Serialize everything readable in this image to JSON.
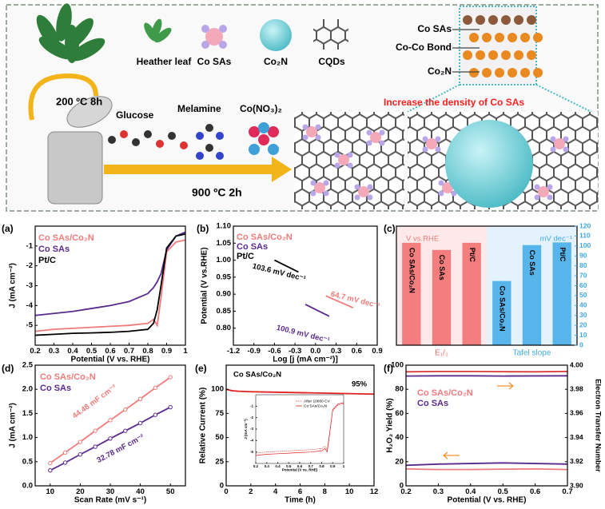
{
  "scheme": {
    "legend": [
      "Heather leaf",
      "Co SAs",
      "Co₂N",
      "CQDs"
    ],
    "structure_labels": [
      "Co SAs",
      "Co-Co Bond",
      "Co₂N"
    ],
    "conditions": [
      "200 ºC 8h",
      "900 ºC 2h"
    ],
    "precursors": [
      "Glucose",
      "Melamine",
      "Co(NO₃)₂"
    ],
    "caption": "Increase the density of Co SAs"
  },
  "chart_data": [
    {
      "type": "line",
      "label": "(a)",
      "xlabel": "Potential (V vs. RHE)",
      "ylabel": "J (mA cm⁻²)",
      "x": [
        0.2,
        0.3,
        0.4,
        0.5,
        0.6,
        0.7,
        0.8,
        0.83,
        0.85,
        0.87,
        0.9,
        0.95,
        1.0
      ],
      "xlim": [
        0.2,
        1.0
      ],
      "xticks": [
        0.2,
        0.3,
        0.4,
        0.5,
        0.6,
        0.7,
        0.8,
        0.9,
        1.0
      ],
      "ylim": [
        -6,
        0
      ],
      "yticks": [
        -5,
        -4,
        -3,
        -2,
        -1
      ],
      "series": [
        {
          "name": "Co SAs/Co₂N",
          "color": "#f07b7b",
          "values": [
            -5.3,
            -5.2,
            -5.15,
            -5.1,
            -5.05,
            -5.0,
            -4.9,
            -4.7,
            -5.0,
            -3.6,
            -1.3,
            -0.8,
            -0.7
          ]
        },
        {
          "name": "Co SAs",
          "color": "#5a2a8c",
          "values": [
            -4.5,
            -4.4,
            -4.3,
            -4.15,
            -4.0,
            -3.8,
            -3.4,
            -3.1,
            -2.8,
            -2.4,
            -1.2,
            -0.5,
            -0.3
          ]
        },
        {
          "name": "Pt/C",
          "color": "#000000",
          "values": [
            -5.5,
            -5.45,
            -5.4,
            -5.38,
            -5.35,
            -5.3,
            -5.2,
            -4.9,
            -4.2,
            -3.0,
            -1.1,
            -0.5,
            -0.4
          ]
        }
      ]
    },
    {
      "type": "line",
      "label": "(b)",
      "xlabel": "Log [j (mA cm⁻²)]",
      "ylabel": "Potential (V vs.RHE)",
      "xlim": [
        -1.2,
        0.9
      ],
      "xticks": [
        -1.2,
        -0.9,
        -0.6,
        -0.3,
        {
          "value": 0,
          "label": "0.0"
        },
        0.3,
        0.6,
        0.9
      ],
      "ylim": [
        0.75,
        1.1
      ],
      "yticks": [
        {
          "value": 0.8,
          "label": "0.80"
        },
        0.85,
        {
          "value": 0.9,
          "label": "0.90"
        },
        0.95,
        {
          "value": 1.0,
          "label": "1.00"
        },
        1.05,
        {
          "value": 1.1,
          "label": "1.10"
        }
      ],
      "series": [
        {
          "name": "Co SAs/Co₂N",
          "color": "#f07b7b",
          "x": [
            0.15,
            0.55
          ],
          "values": [
            0.895,
            0.86
          ]
        },
        {
          "name": "Co SAs",
          "color": "#5a2a8c",
          "x": [
            -0.15,
            0.2
          ],
          "values": [
            0.87,
            0.835
          ]
        },
        {
          "name": "Pt/C",
          "color": "#000000",
          "x": [
            -0.6,
            -0.25
          ],
          "values": [
            1.0,
            0.965
          ]
        }
      ],
      "annotations": [
        "103.6 mV dec⁻¹",
        "64.7 mV dec⁻¹",
        "100.9 mV dec⁻¹"
      ]
    },
    {
      "type": "bar",
      "label": "(c)",
      "ylabel": "V vs.RHE",
      "y2label": "mV dec⁻¹",
      "categories": [
        "Co SAs/Co₂N",
        "Co SAs",
        "Pt/C"
      ],
      "ylim": [
        0,
        1.0
      ],
      "y2lim": [
        0,
        120
      ],
      "y2ticks": [
        0,
        10,
        20,
        30,
        40,
        50,
        60,
        70,
        80,
        90,
        100,
        110,
        120
      ],
      "ycolor": "#f07b7b",
      "y2color": "#3fa9e8",
      "series": [
        {
          "name": "E₁/₂",
          "color": "#f26a6a",
          "background": "#fde9e9",
          "values": [
            0.86,
            0.8,
            0.86
          ]
        },
        {
          "name": "Tafel slope",
          "color": "#3fa9e8",
          "background": "#e4f3fb",
          "axis": "y2",
          "values": [
            64.7,
            100.9,
            103.6
          ]
        }
      ]
    },
    {
      "type": "line",
      "label": "(d)",
      "xlabel": "Scan Rate (mV s⁻¹)",
      "ylabel": "J (mA cm⁻²)",
      "markers": true,
      "x": [
        10,
        15,
        20,
        25,
        30,
        35,
        40,
        45,
        50
      ],
      "xlim": [
        5,
        55
      ],
      "xticks": [
        10,
        20,
        30,
        40,
        50
      ],
      "ylim": [
        0,
        2.5
      ],
      "yticks": [
        {
          "value": 0,
          "label": "0.0"
        },
        0.5,
        {
          "value": 1,
          "label": "1.0"
        },
        1.5,
        {
          "value": 2,
          "label": "2.0"
        },
        2.5
      ],
      "series": [
        {
          "name": "Co SAs/Co₂N",
          "color": "#f07b7b",
          "values": [
            0.47,
            0.69,
            0.91,
            1.14,
            1.36,
            1.58,
            1.8,
            2.03,
            2.25
          ]
        },
        {
          "name": "Co SAs",
          "color": "#5a2a8c",
          "values": [
            0.32,
            0.48,
            0.65,
            0.81,
            0.98,
            1.14,
            1.3,
            1.47,
            1.63
          ]
        }
      ],
      "annotations": [
        "44.48 mF cm⁻²",
        "32.78 mF cm⁻²"
      ]
    },
    {
      "type": "line",
      "label": "(e)",
      "xlabel": "Time (h)",
      "ylabel": "Relative Current (%)",
      "x": [
        0,
        0.5,
        1,
        2,
        4,
        6,
        8,
        10,
        12
      ],
      "xlim": [
        0,
        12
      ],
      "xticks": [
        0,
        2,
        4,
        6,
        8,
        10,
        12
      ],
      "ylim": [
        0,
        125
      ],
      "yticks": [
        0,
        25,
        50,
        75,
        100
      ],
      "series": [
        {
          "name": "Co SAs/Co₂N",
          "color": "#e02020",
          "values": [
            100,
            98.5,
            98,
            97.5,
            97,
            96.5,
            96,
            95.5,
            95
          ]
        }
      ],
      "annotations": [
        "95%"
      ]
    },
    {
      "type": "line",
      "xlabel": "Potential (V vs. RHE)",
      "ylabel": "J (mA cm⁻²)",
      "x": [
        0.2,
        0.3,
        0.4,
        0.5,
        0.6,
        0.7,
        0.8,
        0.83,
        0.85,
        0.87,
        0.9,
        0.95,
        1.0
      ],
      "xlim": [
        0.2,
        1.0
      ],
      "xticks": [
        0.2,
        0.3,
        0.4,
        0.5,
        0.6,
        0.7,
        0.8,
        0.9,
        1.0
      ],
      "ylim": [
        -6,
        0
      ],
      "yticks": [
        -5,
        -4,
        -3,
        -2,
        -1
      ],
      "series": [
        {
          "name": "After 10000 CV",
          "color": "#e04040",
          "style": "dotted",
          "values": [
            -5.1,
            -5.0,
            -4.95,
            -4.9,
            -4.85,
            -4.8,
            -4.7,
            -4.5,
            -4.8,
            -3.5,
            -1.4,
            -0.9,
            -0.8
          ]
        },
        {
          "name": "Co SAs/Co₂N",
          "color": "#e02020",
          "values": [
            -5.3,
            -5.2,
            -5.15,
            -5.1,
            -5.05,
            -5.0,
            -4.9,
            -4.7,
            -5.0,
            -3.6,
            -1.3,
            -0.8,
            -0.7
          ]
        }
      ]
    },
    {
      "type": "line",
      "label": "(f)",
      "xlabel": "Potential (V vs. RHE)",
      "ylabel": "H₂O₂ Yield (%)",
      "y2label": "Electron Transfer Number",
      "x": [
        0.2,
        0.3,
        0.4,
        0.5,
        0.6,
        0.7
      ],
      "xlim": [
        0.2,
        0.7
      ],
      "xticks": [
        0.2,
        0.3,
        0.4,
        0.5,
        0.6,
        0.7
      ],
      "ylim": [
        0,
        100
      ],
      "yticks": [
        0,
        20,
        40,
        60,
        80,
        100
      ],
      "y2lim": [
        3.9,
        4.0
      ],
      "y2ticks": [
        {
          "value": 3.9,
          "label": "3.90"
        },
        3.92,
        3.94,
        3.96,
        3.98,
        {
          "value": 4.0,
          "label": "4.00"
        }
      ],
      "series": [
        {
          "name": "Co SAs/Co₂N",
          "color": "#f07b7b",
          "values": [
            14,
            13.5,
            13.5,
            13.8,
            14,
            13.5
          ]
        },
        {
          "name": "Co SAs",
          "color": "#5a2a8c",
          "values": [
            17,
            18,
            18.5,
            19,
            18.5,
            18
          ]
        },
        {
          "color": "#d93a3a",
          "axis": "y2",
          "values": [
            3.9945,
            3.9948,
            3.9948,
            3.9946,
            3.9945,
            3.9948
          ]
        },
        {
          "color": "#5a2a8c",
          "axis": "y2",
          "values": [
            3.991,
            3.9912,
            3.9912,
            3.991,
            3.9911,
            3.9912
          ]
        }
      ]
    }
  ]
}
